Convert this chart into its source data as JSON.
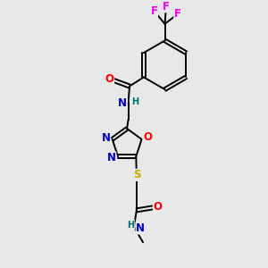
{
  "background_color": "#e8e8e8",
  "fig_size": [
    3.0,
    3.0
  ],
  "dpi": 100,
  "atom_colors": {
    "C": "#000000",
    "N": "#0000cd",
    "O": "#ff0000",
    "S": "#ccaa00",
    "F": "#ee00ee",
    "H": "#007070"
  },
  "bond_color": "#000000",
  "bond_width": 1.4,
  "font_size_atoms": 8.5,
  "font_size_small": 7.0,
  "background_color_hex": "#e8e8e8"
}
